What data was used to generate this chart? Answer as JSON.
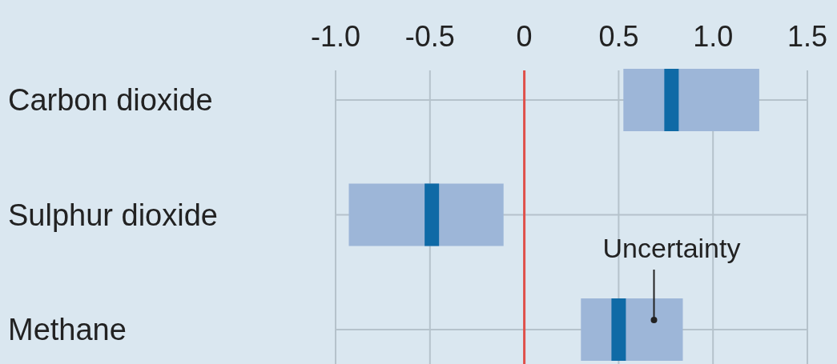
{
  "chart_data": {
    "type": "box",
    "orientation": "horizontal",
    "categories": [
      "Carbon dioxide",
      "Sulphur dioxide",
      "Methane"
    ],
    "series": [
      {
        "color": "#9db6d8",
        "boxes": [
          {
            "low": 0.525,
            "q1": 0.525,
            "median": 0.78,
            "q3": 1.245,
            "high": 1.245
          },
          {
            "low": -0.93,
            "q1": -0.93,
            "median": -0.49,
            "q3": -0.11,
            "high": -0.11
          },
          {
            "low": 0.3,
            "q1": 0.3,
            "median": 0.5,
            "q3": 0.84,
            "high": 0.84
          }
        ]
      }
    ],
    "xlim": [
      -1,
      1.5
    ],
    "xticks": [
      {
        "value": -1,
        "label": "-1.0"
      },
      {
        "value": -0.5,
        "label": "-0.5"
      },
      0,
      0.5,
      {
        "value": 1,
        "label": "1.0"
      },
      1.5
    ],
    "grid": true,
    "ref_lines": [
      {
        "axis": "x",
        "value": 0,
        "color": "#e0504a"
      }
    ],
    "annotations": [
      "Uncertainty"
    ]
  }
}
